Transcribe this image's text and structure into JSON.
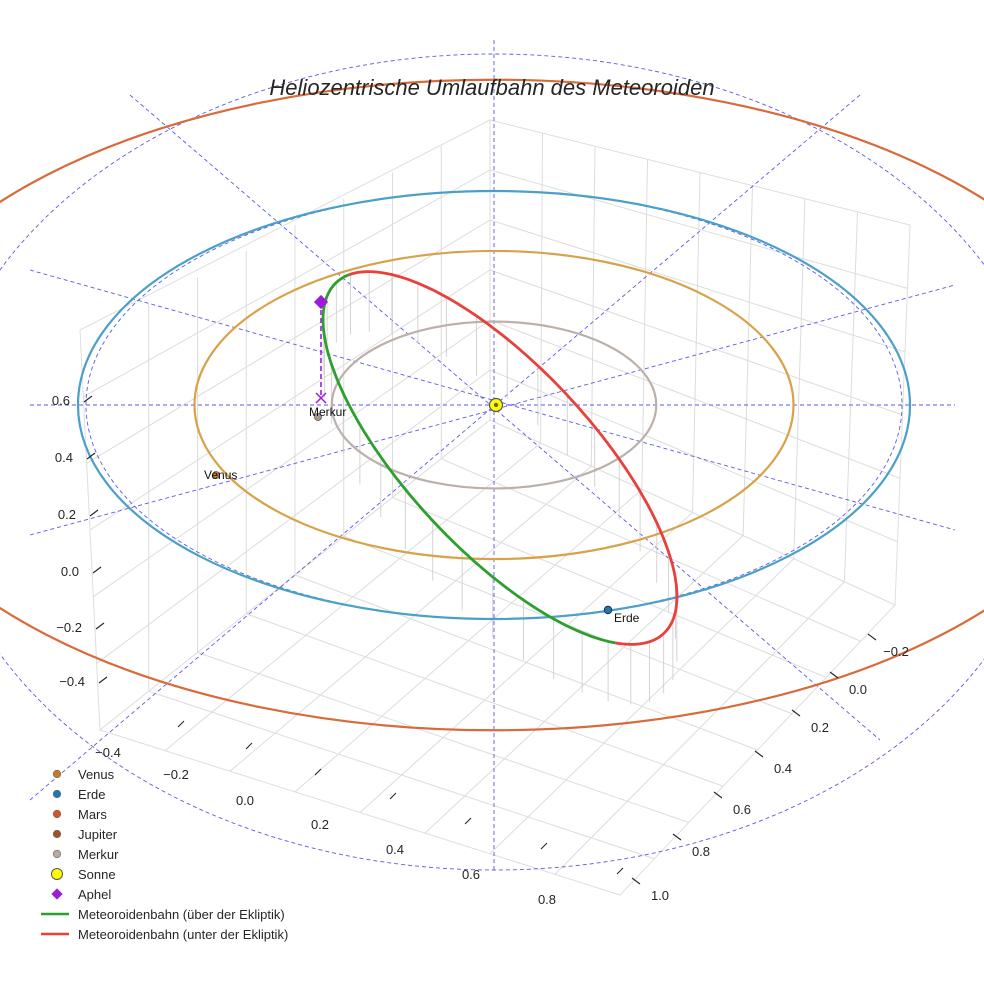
{
  "chart_data": {
    "type": "line",
    "projection": "3d",
    "title": "Heliozentrische Umlaufbahn des Meteoroiden",
    "axes": {
      "y_left_ticks": [
        "0.6",
        "0.4",
        "0.2",
        "0.0",
        "−0.2",
        "−0.4"
      ],
      "x_bottom_ticks": [
        "−0.4",
        "−0.2",
        "0.0",
        "0.2",
        "0.4",
        "0.6",
        "0.8"
      ],
      "z_right_ticks": [
        "−0.2",
        "0.0",
        "0.2",
        "0.4",
        "0.6",
        "0.8",
        "1.0"
      ]
    },
    "orbits": [
      {
        "name": "Merkur",
        "color": "#bcb0aa",
        "radius_au": 0.39
      },
      {
        "name": "Venus",
        "color": "#d8a24a",
        "radius_au": 0.72
      },
      {
        "name": "Erde",
        "color": "#4aa0c8",
        "radius_au": 1.0
      },
      {
        "name": "Mars",
        "color": "#d96a3a",
        "radius_au": 1.52
      }
    ],
    "bodies": [
      {
        "name": "Venus",
        "label": "Venus",
        "color": "#c87a2a"
      },
      {
        "name": "Erde",
        "label": "Erde",
        "color": "#1f77b4"
      },
      {
        "name": "Merkur",
        "label": "Merkur",
        "color": "#a89a8a"
      },
      {
        "name": "Sonne",
        "label": "",
        "color": "#ffff00"
      }
    ],
    "meteoroid_orbit": {
      "above_ecliptic": {
        "name": "Meteoroidenbahn (über der Ekliptik)",
        "color": "#2ca02c"
      },
      "below_ecliptic": {
        "name": "Meteoroidenbahn (unter der Ekliptik)",
        "color": "#e8413c"
      },
      "aphel_marker_color": "#9b1ed6"
    },
    "legend": [
      {
        "label": "Venus",
        "marker": "circle",
        "color": "#c87a2a"
      },
      {
        "label": "Erde",
        "marker": "circle",
        "color": "#1f77b4"
      },
      {
        "label": "Mars",
        "marker": "circle",
        "color": "#d9542a"
      },
      {
        "label": "Jupiter",
        "marker": "circle",
        "color": "#a0522d"
      },
      {
        "label": "Merkur",
        "marker": "circle",
        "color": "#bca89e"
      },
      {
        "label": "Sonne",
        "marker": "circle-large",
        "color": "#ffff00"
      },
      {
        "label": "Aphel",
        "marker": "diamond",
        "color": "#9b1ed6"
      },
      {
        "label": "Meteoroidenbahn (über der Ekliptik)",
        "marker": "line",
        "color": "#2ca02c"
      },
      {
        "label": "Meteoroidenbahn (unter der Ekliptik)",
        "marker": "line",
        "color": "#e8413c"
      }
    ]
  }
}
